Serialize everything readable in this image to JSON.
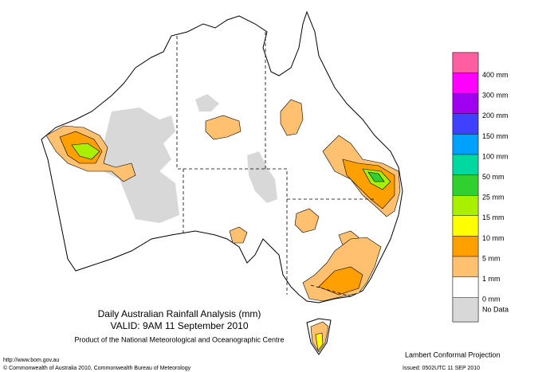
{
  "title": {
    "line1": "Daily Australian Rainfall Analysis (mm)",
    "line2": "VALID: 9AM 11 September 2010",
    "line3": "Product of the National Meteorological and Oceanographic Centre"
  },
  "footer": {
    "url": "http://www.bom.gov.au",
    "copyright": "© Commonwealth of Australia 2010, Commonwealth Bureau of Meteorology",
    "projection": "Lambert Conformal Projection",
    "issued": "Issued: 0502UTC 11 SEP 2010"
  },
  "legend": {
    "items": [
      {
        "label": "400 mm",
        "color": "#ff5fa0"
      },
      {
        "label": "300 mm",
        "color": "#ff00ff"
      },
      {
        "label": "200 mm",
        "color": "#a000f0"
      },
      {
        "label": "150 mm",
        "color": "#4040ff"
      },
      {
        "label": "100 mm",
        "color": "#00a0ff"
      },
      {
        "label": "50 mm",
        "color": "#00d8a0"
      },
      {
        "label": "25 mm",
        "color": "#30d030"
      },
      {
        "label": "15 mm",
        "color": "#a8f000"
      },
      {
        "label": "10 mm",
        "color": "#ffff00"
      },
      {
        "label": "5 mm",
        "color": "#ffa000"
      },
      {
        "label": "1 mm",
        "color": "#ffc070"
      },
      {
        "label": "0 mm",
        "color": "#ffffff"
      },
      {
        "label": "No Data",
        "color": "#d8d8d8"
      }
    ]
  }
}
